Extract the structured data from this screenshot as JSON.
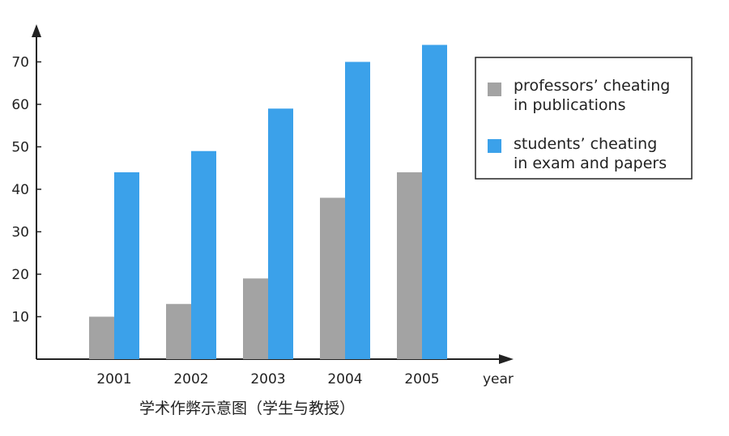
{
  "chart_data": {
    "type": "bar",
    "title": "",
    "caption": "学术作弊示意图（学生与教授）",
    "xlabel": "year",
    "ylabel": "",
    "categories": [
      "2001",
      "2002",
      "2003",
      "2004",
      "2005"
    ],
    "series": [
      {
        "name": "professors’ cheating in publications",
        "name_lines": [
          "professors’ cheating",
          "in publications"
        ],
        "color": "#a3a3a3",
        "values": [
          10,
          13,
          19,
          38,
          44
        ]
      },
      {
        "name": "students’ cheating in exam and papers",
        "name_lines": [
          "students’ cheating",
          "in exam and papers"
        ],
        "color": "#3ba1ea",
        "values": [
          44,
          49,
          59,
          70,
          74
        ]
      }
    ],
    "yticks": [
      10,
      20,
      30,
      40,
      50,
      60,
      70
    ],
    "ylim": [
      0,
      80
    ],
    "grid": false,
    "legend_position": "top-right"
  }
}
